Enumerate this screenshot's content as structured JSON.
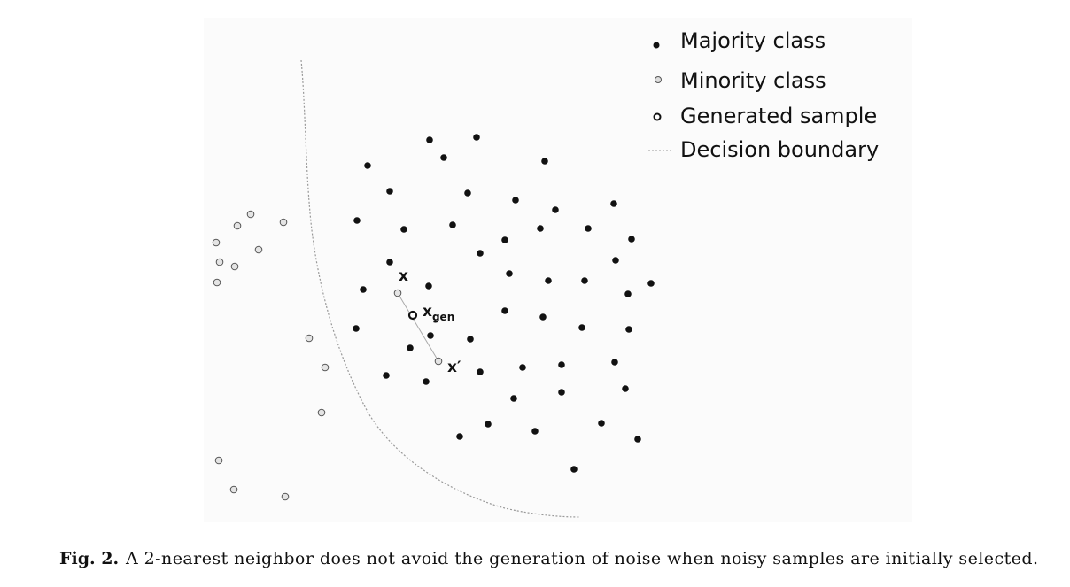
{
  "legend": [
    "Majority class",
    "Minority class",
    "Generated sample",
    "Decision boundary"
  ],
  "point_labels": [
    {
      "label": "x"
    },
    {
      "label": "x",
      "subscript": "gen"
    },
    {
      "label": "x′"
    }
  ],
  "caption": {
    "label": "Fig. 2.",
    "text": "A 2-nearest neighbor does not avoid the generation of noise when noisy samples are initially selected."
  }
}
